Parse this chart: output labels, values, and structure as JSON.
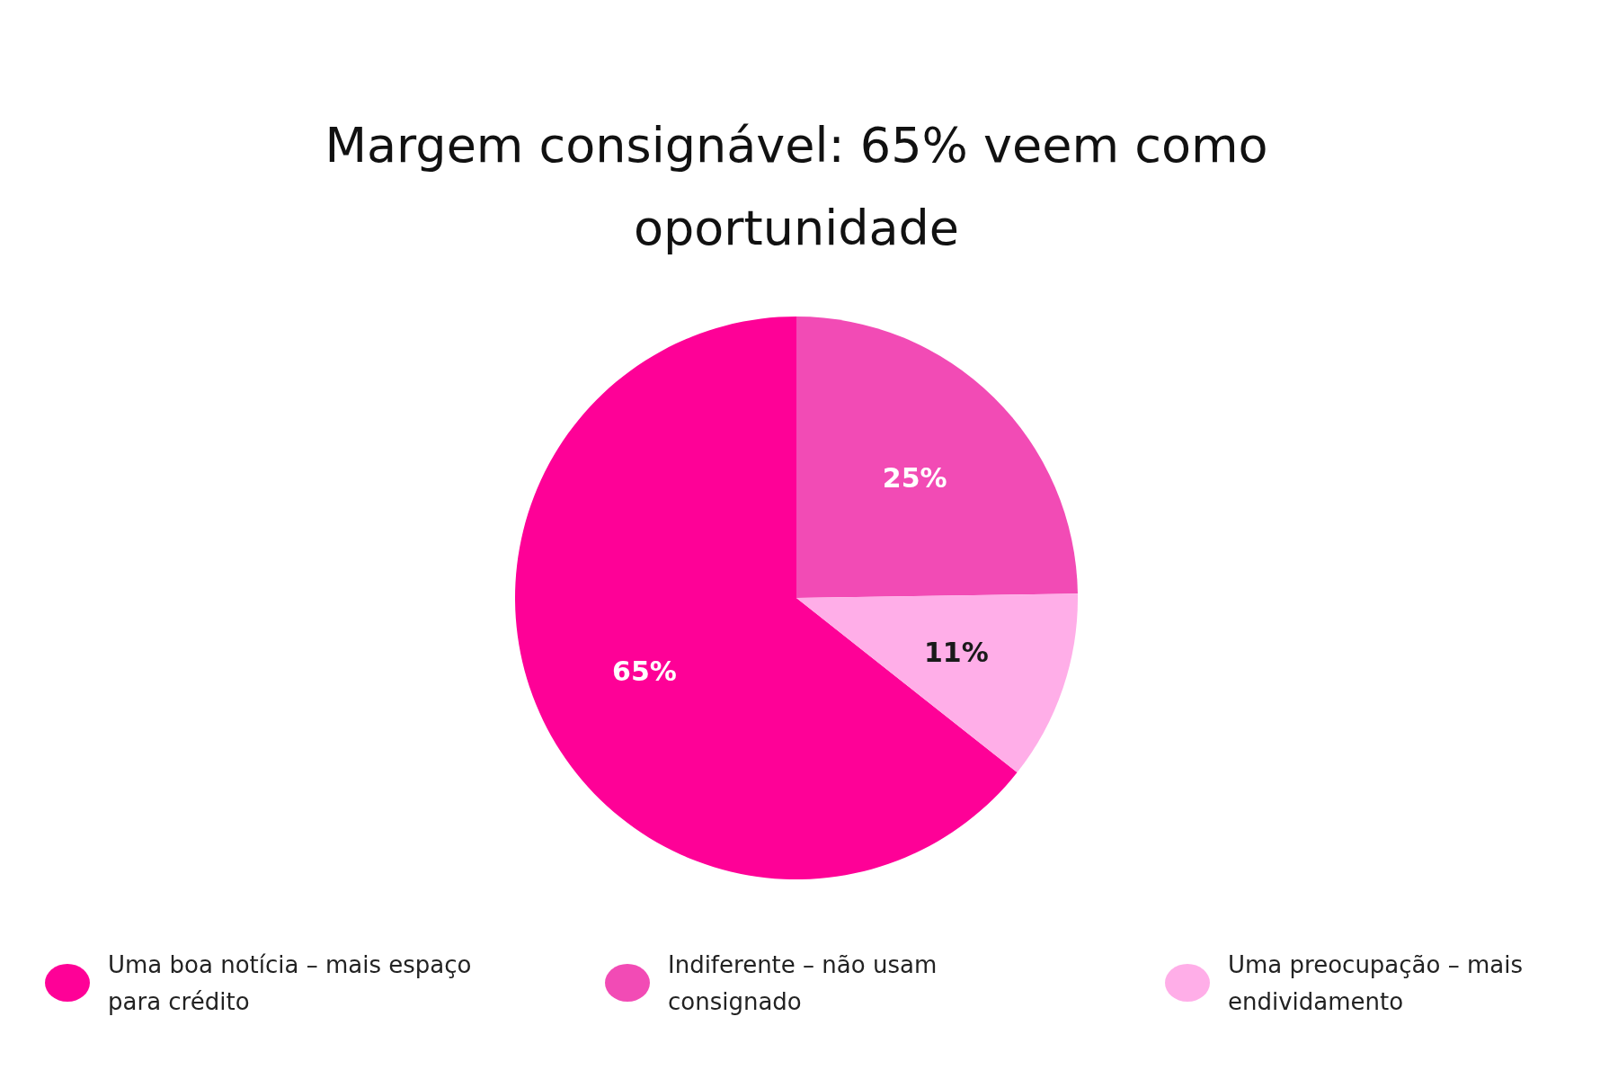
{
  "chart_data": {
    "type": "pie",
    "title": "Margem consignável: 65% veem como oportunidade",
    "categories": [
      "Uma boa notícia – mais espaço para crédito",
      "Indiferente – não usam consignado",
      "Uma preocupação – mais endividamento"
    ],
    "values": [
      65,
      25,
      11
    ],
    "colors": [
      "#fe0197",
      "#f24bb5",
      "#ffaee8"
    ],
    "value_labels": [
      "65%",
      "25%",
      "11%"
    ],
    "legend": "bottom"
  }
}
